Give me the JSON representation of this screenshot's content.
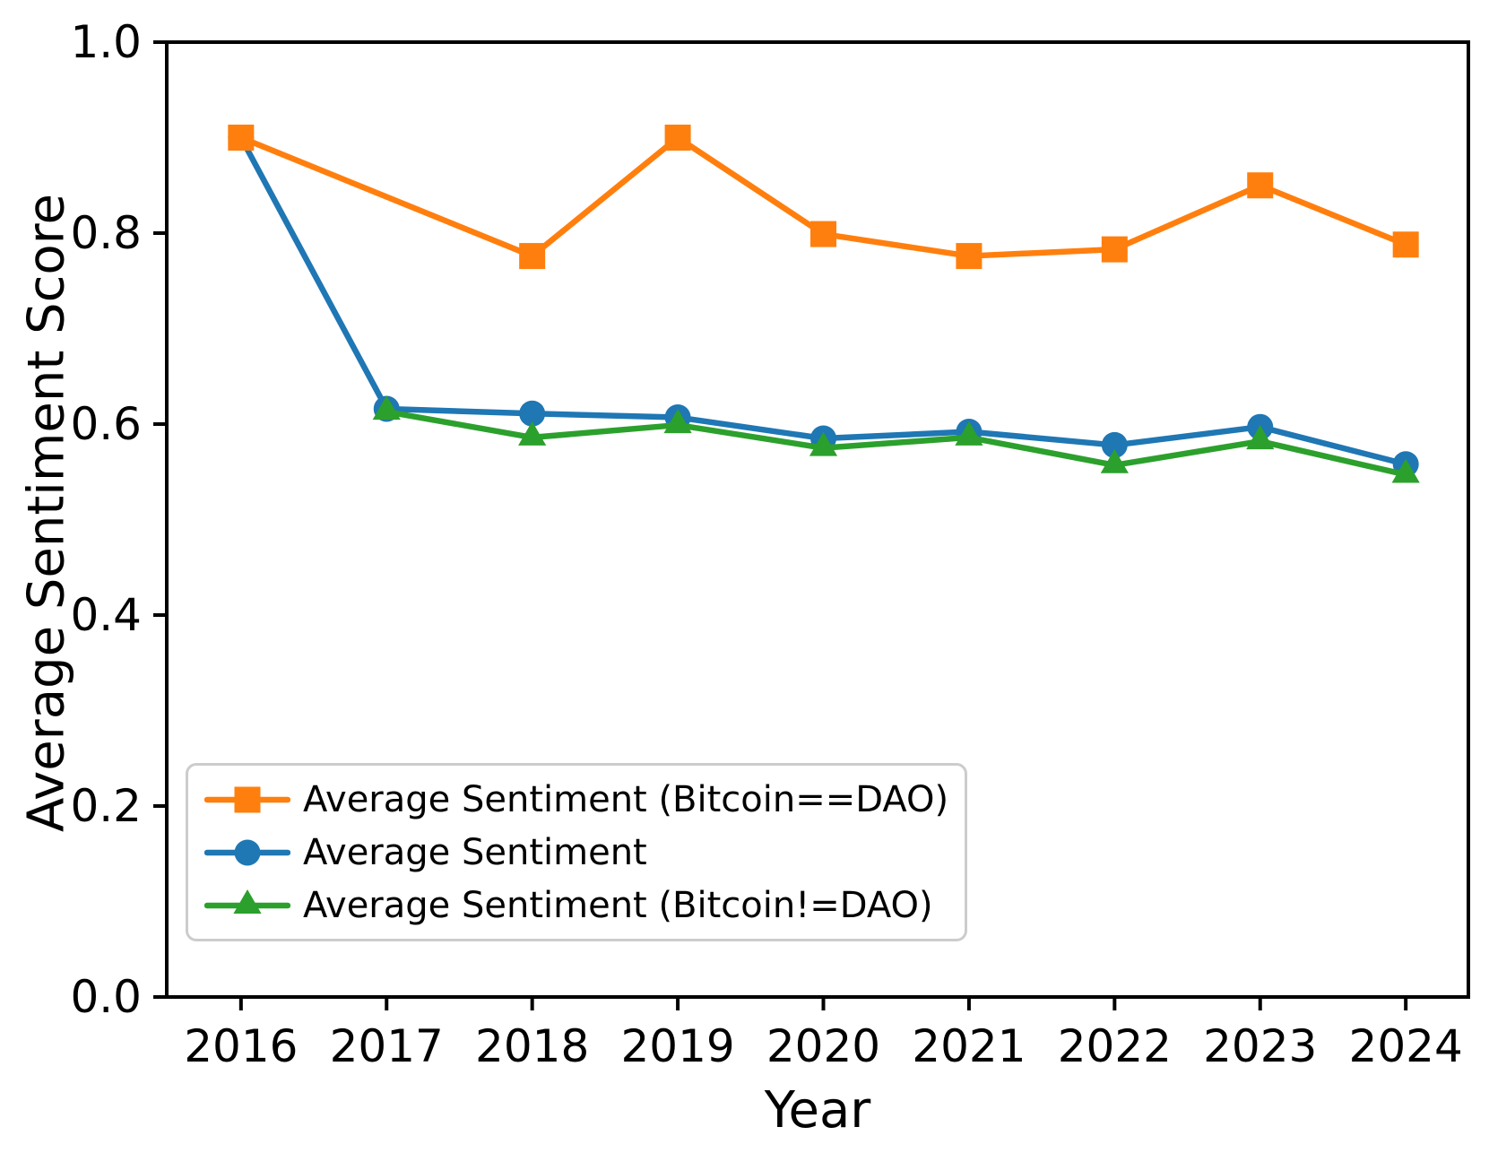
{
  "chart_data": {
    "type": "line",
    "title": "",
    "xlabel": "Year",
    "ylabel": "Average Sentiment Score",
    "x": [
      2016,
      2017,
      2018,
      2019,
      2020,
      2021,
      2022,
      2023,
      2024
    ],
    "xtick_labels": [
      "2016",
      "2017",
      "2018",
      "2019",
      "2020",
      "2021",
      "2022",
      "2023",
      "2024"
    ],
    "yticks": [
      0.0,
      0.2,
      0.4,
      0.6,
      0.8,
      1.0
    ],
    "ytick_labels": [
      "0.0",
      "0.2",
      "0.4",
      "0.6",
      "0.8",
      "1.0"
    ],
    "xlim": [
      2015.49,
      2024.43
    ],
    "ylim": [
      0.0,
      1.0
    ],
    "grid": false,
    "legend_position": "lower-left",
    "series": [
      {
        "name": "Average Sentiment (Bitcoin==DAO)",
        "marker": "square",
        "color": "#ff7f0e",
        "values": [
          0.9,
          null,
          0.776,
          0.9,
          0.799,
          0.776,
          0.783,
          0.85,
          0.788
        ]
      },
      {
        "name": "Average Sentiment",
        "marker": "circle",
        "color": "#1f77b4",
        "values": [
          0.9,
          0.616,
          0.611,
          0.607,
          0.585,
          0.592,
          0.578,
          0.597,
          0.558
        ]
      },
      {
        "name": "Average Sentiment (Bitcoin!=DAO)",
        "marker": "triangle-up",
        "color": "#2ca02c",
        "values": [
          null,
          0.613,
          0.586,
          0.599,
          0.575,
          0.586,
          0.557,
          0.582,
          0.547
        ]
      }
    ],
    "draw_order": [
      1,
      0,
      2
    ]
  },
  "legend": {
    "items": [
      {
        "label": "Average Sentiment (Bitcoin==DAO)",
        "marker": "square",
        "color": "#ff7f0e"
      },
      {
        "label": "Average Sentiment",
        "marker": "circle",
        "color": "#1f77b4"
      },
      {
        "label": "Average Sentiment (Bitcoin!=DAO)",
        "marker": "triangle-up",
        "color": "#2ca02c"
      }
    ]
  },
  "style": {
    "axis_color": "#000000",
    "background": "#ffffff",
    "line_width": 6.5,
    "spine_width": 4,
    "tick_length": 15
  }
}
